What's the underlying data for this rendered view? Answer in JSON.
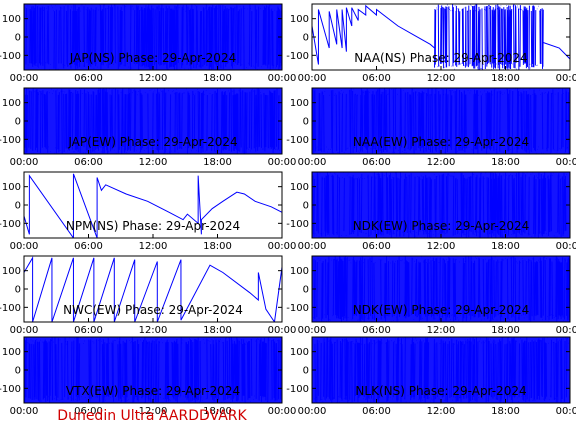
{
  "footer": "Dunedin Ultra AARDDVARK",
  "colors": {
    "trace": "#0000ff",
    "footer": "#d00000",
    "axis": "#000000",
    "background": "#ffffff"
  },
  "chart_data": [
    {
      "type": "line",
      "title": "JAP(NS) Phase: 29-Apr-2024",
      "xlim": [
        0,
        24
      ],
      "ylim": [
        -180,
        180
      ],
      "yticks": [
        100,
        0,
        -100
      ],
      "xticks": [
        "00:00",
        "06:00",
        "12:00",
        "18:00",
        "00:00"
      ],
      "pattern": "dense",
      "series": [
        {
          "x": [
            0,
            24
          ],
          "y": [
            -180,
            180
          ]
        }
      ]
    },
    {
      "type": "line",
      "title": "NAA(NS) Phase: 29-Apr-2024",
      "xlim": [
        0,
        24
      ],
      "ylim": [
        -180,
        180
      ],
      "yticks": [
        100,
        0,
        -100
      ],
      "xticks": [
        "00:00",
        "06:00",
        "12:00",
        "18:00",
        "00:00"
      ],
      "pattern": "mixed",
      "series": [
        {
          "x": [
            0,
            0.6,
            0.6,
            1.6,
            1.6,
            2.3,
            2.3,
            2.8,
            2.8,
            3.2,
            3.2,
            3.7,
            3.7,
            4.3,
            4.3,
            5.0,
            5.0,
            6.0,
            6.0,
            8.0,
            9.5,
            11.0,
            11.4
          ],
          "y": [
            60,
            -150,
            150,
            -60,
            140,
            -40,
            150,
            -60,
            150,
            -80,
            160,
            60,
            160,
            90,
            150,
            120,
            170,
            120,
            150,
            60,
            10,
            -40,
            -60
          ]
        }
      ],
      "dense_ranges": [
        [
          11.4,
          19.0
        ],
        [
          19.0,
          20.5
        ],
        [
          20.5,
          21.5
        ]
      ],
      "tail": {
        "x": [
          21.5,
          23.0,
          24.0
        ],
        "y": [
          -30,
          -60,
          -120
        ]
      }
    },
    {
      "type": "line",
      "title": "JAP(EW) Phase: 29-Apr-2024",
      "xlim": [
        0,
        24
      ],
      "ylim": [
        -180,
        180
      ],
      "yticks": [
        100,
        0,
        -100
      ],
      "xticks": [
        "00:00",
        "06:00",
        "12:00",
        "18:00",
        "00:00"
      ],
      "pattern": "dense",
      "series": [
        {
          "x": [
            0,
            24
          ],
          "y": [
            -180,
            180
          ]
        }
      ]
    },
    {
      "type": "line",
      "title": "NAA(EW) Phase: 29-Apr-2024",
      "xlim": [
        0,
        24
      ],
      "ylim": [
        -180,
        180
      ],
      "yticks": [
        100,
        0,
        -100
      ],
      "xticks": [
        "00:00",
        "06:00",
        "12:00",
        "18:00",
        "00:00"
      ],
      "pattern": "dense",
      "series": [
        {
          "x": [
            0,
            24
          ],
          "y": [
            -180,
            180
          ]
        }
      ]
    },
    {
      "type": "line",
      "title": "NPM(NS) Phase: 29-Apr-2024",
      "xlim": [
        0,
        24
      ],
      "ylim": [
        -180,
        180
      ],
      "yticks": [
        100,
        0,
        -100
      ],
      "xticks": [
        "00:00",
        "06:00",
        "12:00",
        "18:00",
        "00:00"
      ],
      "pattern": "sparse",
      "series": [
        {
          "x": [
            0,
            0.5,
            0.5,
            4.6,
            4.6,
            6.8,
            6.8,
            7.2,
            7.6,
            9.5,
            11.5,
            13.5,
            14.8,
            15.2,
            16.2,
            16.2,
            16.5,
            16.5,
            17.5,
            18.5,
            19.8,
            20.5,
            21.5,
            23.0,
            24.0
          ],
          "y": [
            -60,
            -160,
            160,
            -180,
            170,
            -180,
            150,
            80,
            110,
            60,
            20,
            -40,
            -80,
            -50,
            -100,
            160,
            -160,
            -80,
            -20,
            20,
            70,
            60,
            20,
            -10,
            -40
          ]
        }
      ]
    },
    {
      "type": "line",
      "title": "NDK(EW) Phase: 29-Apr-2024",
      "xlim": [
        0,
        24
      ],
      "ylim": [
        -180,
        180
      ],
      "yticks": [
        100,
        0,
        -100
      ],
      "xticks": [
        "00:00",
        "06:00",
        "12:00",
        "18:00",
        "00:00"
      ],
      "pattern": "dense",
      "series": [
        {
          "x": [
            0,
            24
          ],
          "y": [
            -180,
            180
          ]
        }
      ]
    },
    {
      "type": "line",
      "title": "NWC(EW) Phase: 29-Apr-2024",
      "xlim": [
        0,
        24
      ],
      "ylim": [
        -180,
        180
      ],
      "yticks": [
        100,
        0,
        -100
      ],
      "xticks": [
        "00:00",
        "06:00",
        "12:00",
        "18:00",
        "00:00"
      ],
      "pattern": "sawtooth",
      "series": [
        {
          "x": [
            0,
            0.8,
            0.8,
            2.6,
            2.6,
            4.6,
            4.6,
            6.5,
            6.5,
            8.4,
            8.4,
            10.3,
            10.3,
            12.4,
            12.4,
            14.6,
            14.6,
            17.3,
            18.5,
            21.0,
            21.8,
            21.8,
            22.5,
            23.3,
            24.0
          ],
          "y": [
            90,
            170,
            -180,
            170,
            -180,
            170,
            -180,
            170,
            -180,
            170,
            -180,
            160,
            -180,
            150,
            -180,
            160,
            -170,
            130,
            90,
            -20,
            -60,
            90,
            -110,
            -180,
            120
          ]
        }
      ]
    },
    {
      "type": "line",
      "title": "NDK(EW) Phase: 29-Apr-2024",
      "xlim": [
        0,
        24
      ],
      "ylim": [
        -180,
        180
      ],
      "yticks": [
        100,
        0,
        -100
      ],
      "xticks": [
        "00:00",
        "06:00",
        "12:00",
        "18:00",
        "00:00"
      ],
      "pattern": "dense",
      "series": [
        {
          "x": [
            0,
            24
          ],
          "y": [
            -180,
            180
          ]
        }
      ]
    },
    {
      "type": "line",
      "title": "VTX(EW) Phase: 29-Apr-2024",
      "xlim": [
        0,
        24
      ],
      "ylim": [
        -180,
        180
      ],
      "yticks": [
        100,
        0,
        -100
      ],
      "xticks": [
        "00:00",
        "06:00",
        "12:00",
        "18:00",
        "00:00"
      ],
      "pattern": "dense",
      "series": [
        {
          "x": [
            0,
            24
          ],
          "y": [
            -180,
            180
          ]
        }
      ]
    },
    {
      "type": "line",
      "title": "NLK(NS) Phase: 29-Apr-2024",
      "xlim": [
        0,
        24
      ],
      "ylim": [
        -180,
        180
      ],
      "yticks": [
        100,
        0,
        -100
      ],
      "xticks": [
        "00:00",
        "06:00",
        "12:00",
        "18:00",
        "00:00"
      ],
      "pattern": "dense",
      "series": [
        {
          "x": [
            0,
            24
          ],
          "y": [
            -180,
            180
          ]
        }
      ]
    }
  ]
}
